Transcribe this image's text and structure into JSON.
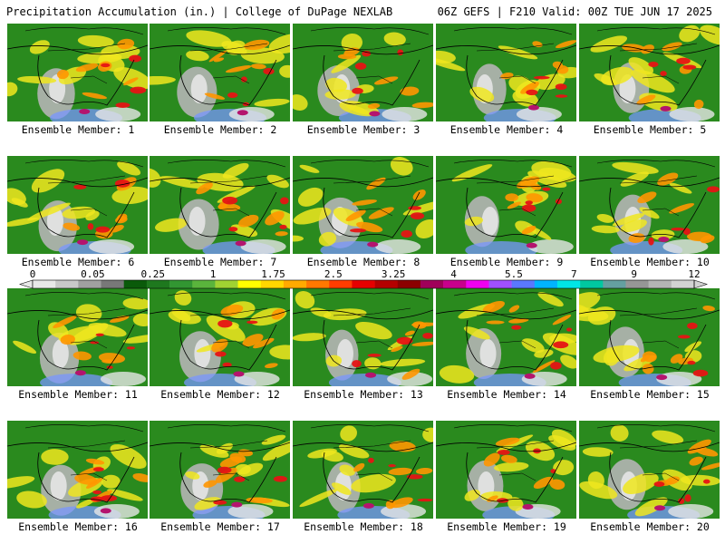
{
  "header": {
    "left": "Precipitation Accumulation (in.) | College of DuPage NEXLAB",
    "right": "06Z GEFS | F210 Valid: 00Z TUE JUN 17 2025"
  },
  "member_label_prefix": "Ensemble Member: ",
  "members": [
    1,
    2,
    3,
    4,
    5,
    6,
    7,
    8,
    9,
    10,
    11,
    12,
    13,
    14,
    15,
    16,
    17,
    18,
    19,
    20
  ],
  "colorbar": {
    "tick_labels": [
      "0",
      "0.05",
      "0.25",
      "1",
      "1.75",
      "2.5",
      "3.25",
      "4",
      "5.5",
      "7",
      "9",
      "12"
    ],
    "colors": [
      "#e8e8e8",
      "#c8c8c8",
      "#a0a0a0",
      "#787878",
      "#0a5a0a",
      "#1e781e",
      "#329632",
      "#5ab43c",
      "#a0d232",
      "#ffff00",
      "#ffd700",
      "#ffaa00",
      "#ff7800",
      "#ff3c00",
      "#e60000",
      "#b40000",
      "#8c0000",
      "#a0005a",
      "#c8008c",
      "#f000f0",
      "#a050ff",
      "#5a78ff",
      "#00b4ff",
      "#00e6e6",
      "#00c8a0",
      "#64a0a0",
      "#969696",
      "#b4b4b4",
      "#d2d2d2"
    ]
  },
  "map_colors": {
    "land_base": "#2a8a1e",
    "grey": "#b4b4b4",
    "light_grey": "#e6e6e6",
    "yellow": "#f0e61e",
    "orange": "#ff9600",
    "red": "#e61414",
    "magenta": "#b4146e",
    "blue": "#7896ff",
    "border": "#000000"
  }
}
